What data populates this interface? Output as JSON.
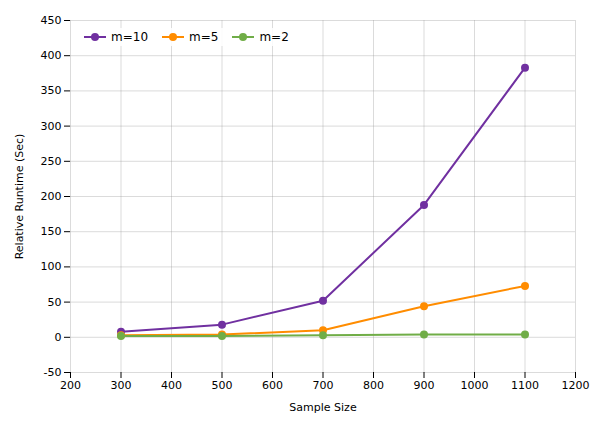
{
  "chart_data": {
    "type": "line",
    "title": "",
    "xlabel": "Sample Size",
    "ylabel": "Relative Runtime (Sec)",
    "x": [
      300,
      500,
      700,
      900,
      1100
    ],
    "series": [
      {
        "name": "m=10",
        "color": "#7030A0",
        "marker": "circle",
        "values": [
          8,
          18,
          52,
          188,
          383
        ]
      },
      {
        "name": "m=5",
        "color": "#FF8C00",
        "marker": "circle",
        "values": [
          3,
          4,
          10,
          44,
          73
        ]
      },
      {
        "name": "m=2",
        "color": "#70AD47",
        "marker": "circle",
        "values": [
          2,
          2,
          3,
          4,
          4
        ]
      }
    ],
    "xlim": [
      200,
      1200
    ],
    "xticks": [
      200,
      300,
      400,
      500,
      600,
      700,
      800,
      900,
      1000,
      1100,
      1200
    ],
    "ylim": [
      -50,
      450
    ],
    "yticks": [
      -50,
      0,
      50,
      100,
      150,
      200,
      250,
      300,
      350,
      400,
      450
    ],
    "grid": true,
    "legend": "upper left"
  }
}
